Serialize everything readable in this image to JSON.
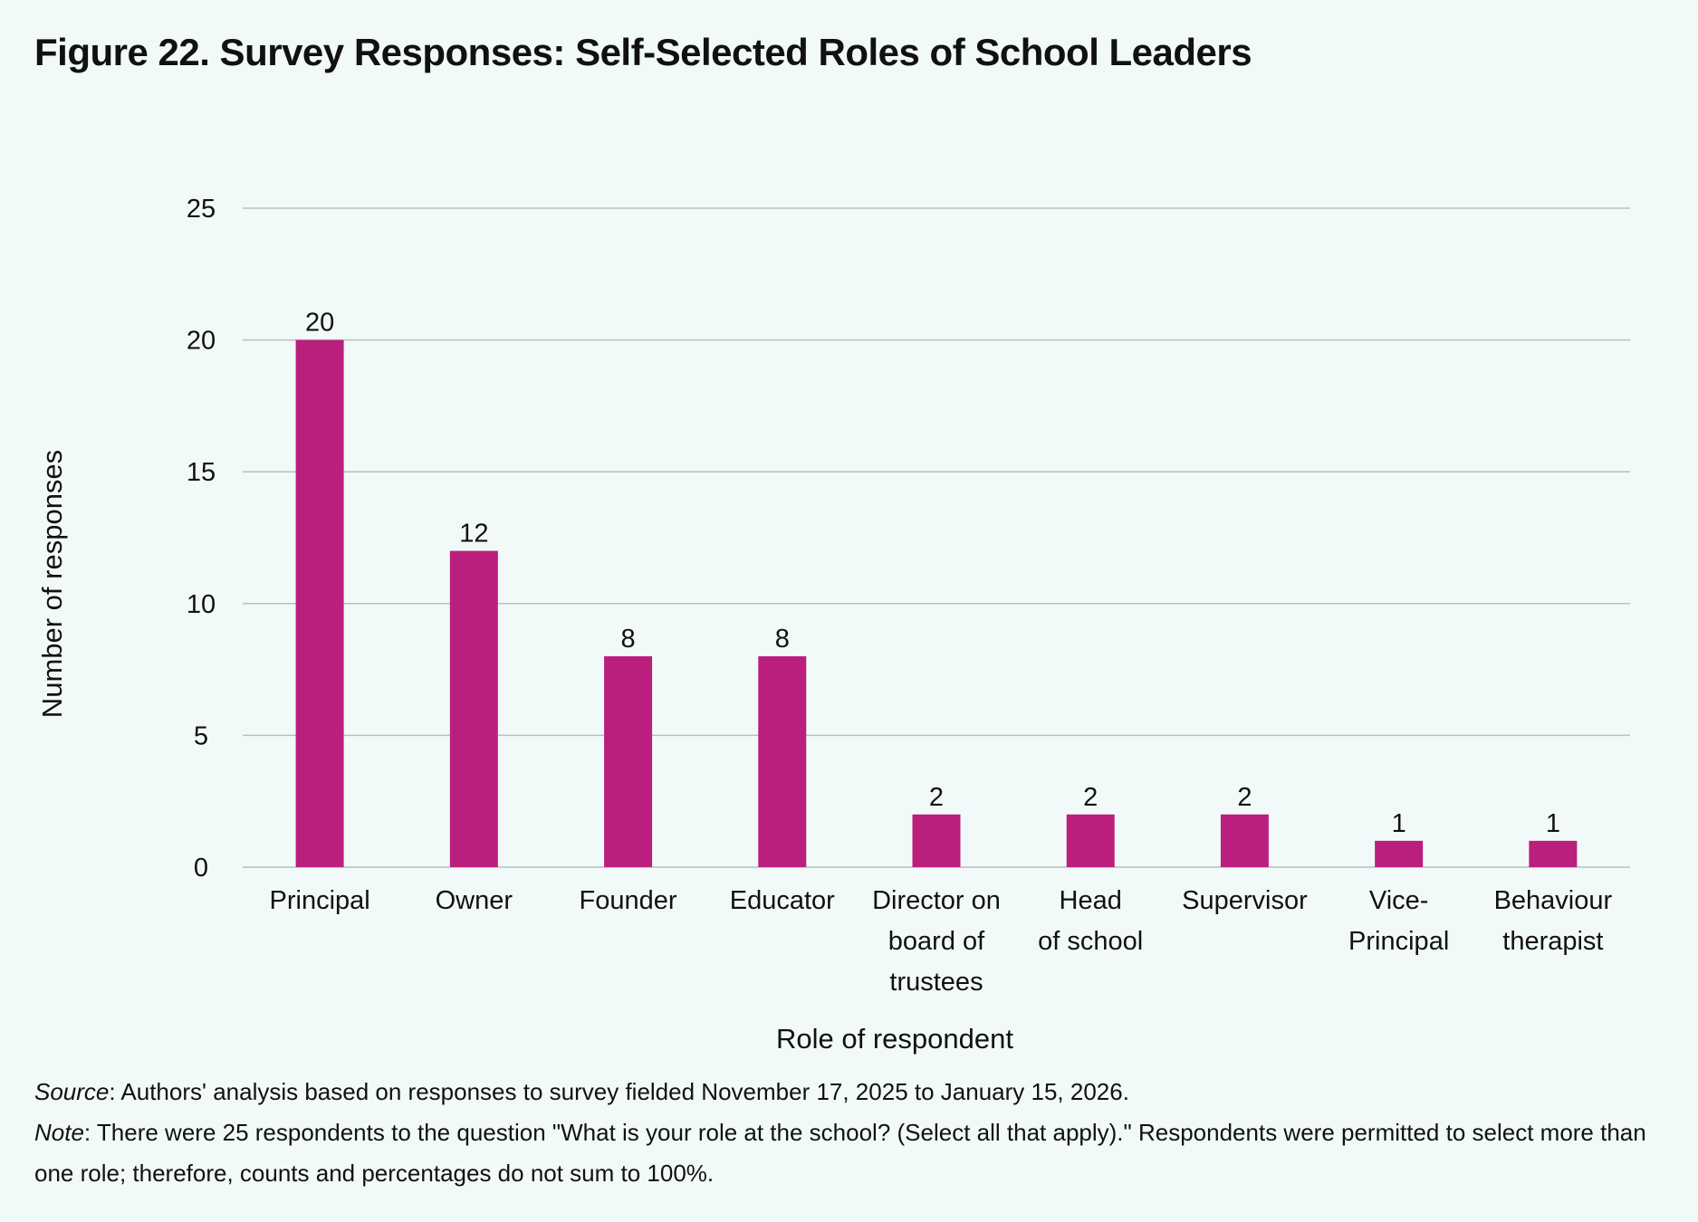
{
  "figure": {
    "title": "Figure 22. Survey Responses: Self-Selected Roles of School Leaders"
  },
  "chart_data": {
    "type": "bar",
    "title": "Figure 22. Survey Responses: Self-Selected Roles of School Leaders",
    "xlabel": "Role of respondent",
    "ylabel": "Number of responses",
    "categories": [
      [
        "Principal"
      ],
      [
        "Owner"
      ],
      [
        "Founder"
      ],
      [
        "Educator"
      ],
      [
        "Director on",
        "board of",
        "trustees"
      ],
      [
        "Head",
        "of school"
      ],
      [
        "Supervisor"
      ],
      [
        "Vice-",
        "Principal"
      ],
      [
        "Behaviour",
        "therapist"
      ]
    ],
    "values": [
      20,
      12,
      8,
      8,
      2,
      2,
      2,
      1,
      1
    ],
    "ylim": [
      0,
      25
    ],
    "yticks": [
      0,
      5,
      10,
      15,
      20,
      25
    ],
    "grid": true,
    "legend": "none",
    "bar_color": "#bb1f7d",
    "grid_color": "#b7bfc0",
    "data_labels": true
  },
  "footnotes": {
    "source_label": "Source",
    "source_text": ": Authors' analysis based on responses to survey fielded November 17, 2025 to January 15, 2026.",
    "note_label": "Note",
    "note_text": ": There were 25 respondents to the question \"What is your role at the school? (Select all that apply).\" Respondents were permitted to select more than one role; therefore, counts and percentages do not sum to 100%."
  }
}
